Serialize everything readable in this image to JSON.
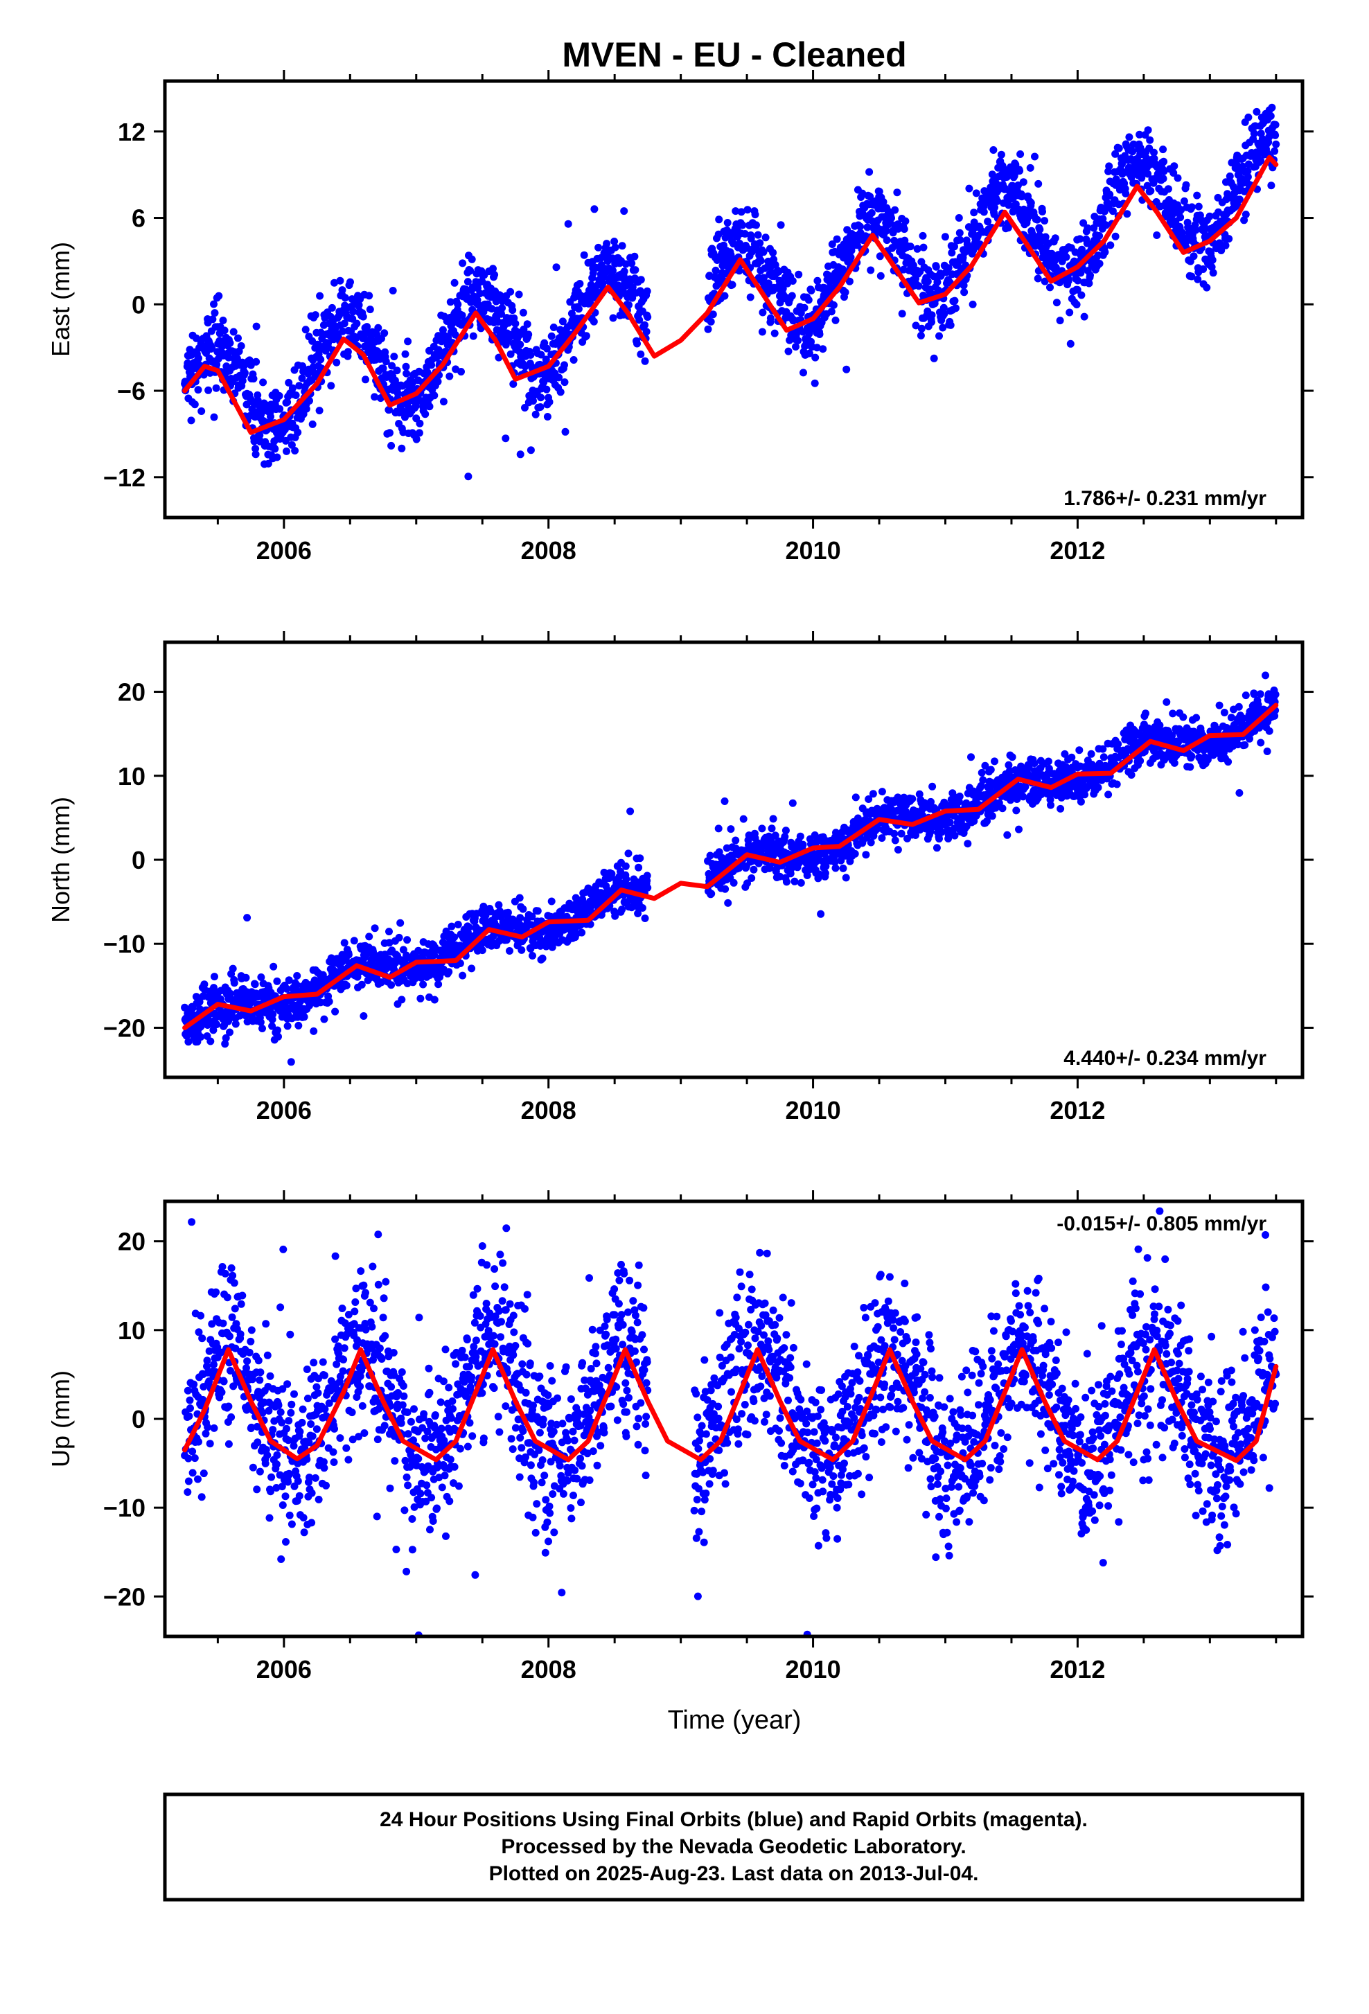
{
  "title": "MVEN  - EU - Cleaned",
  "x_axis_label": "Time (year)",
  "footer": {
    "line1": "24 Hour Positions Using Final Orbits (blue) and Rapid Orbits (magenta).",
    "line2": "Processed by the Nevada Geodetic Laboratory.",
    "line3": "Plotted on 2025-Aug-23. Last data on 2013-Jul-04."
  },
  "colors": {
    "points": "#0000ff",
    "model": "#ff0000",
    "axis": "#000000"
  },
  "chart_data": [
    {
      "type": "scatter",
      "name": "East",
      "ylabel": "East (mm)",
      "rate_label": "1.786+/- 0.231 mm/yr",
      "xlim": [
        2005.1,
        2013.7
      ],
      "ylim": [
        -14.8,
        15.5
      ],
      "x_ticks": [
        2006,
        2008,
        2010,
        2012
      ],
      "y_ticks": [
        -12,
        -6,
        0,
        6,
        12
      ],
      "grid": false,
      "trend": {
        "slope": 1.786,
        "intercept": -6.5,
        "amplitude": 3.2,
        "peak_phase": 0.45
      },
      "data_span": [
        2005.25,
        2013.5
      ],
      "data_gap": [
        2008.75,
        2009.2
      ],
      "scatter_sigma": 1.4,
      "model_curve": [
        [
          2005.25,
          -6.0
        ],
        [
          2005.4,
          -4.3
        ],
        [
          2005.5,
          -4.6
        ],
        [
          2005.75,
          -8.9
        ],
        [
          2006.0,
          -8.0
        ],
        [
          2006.25,
          -5.5
        ],
        [
          2006.45,
          -2.4
        ],
        [
          2006.6,
          -3.5
        ],
        [
          2006.8,
          -7.0
        ],
        [
          2007.0,
          -6.2
        ],
        [
          2007.2,
          -4.2
        ],
        [
          2007.45,
          -0.6
        ],
        [
          2007.6,
          -2.5
        ],
        [
          2007.75,
          -5.2
        ],
        [
          2008.0,
          -4.3
        ],
        [
          2008.2,
          -2.0
        ],
        [
          2008.45,
          1.2
        ],
        [
          2008.6,
          -0.6
        ],
        [
          2008.8,
          -3.6
        ],
        [
          2009.0,
          -2.5
        ],
        [
          2009.2,
          -0.6
        ],
        [
          2009.45,
          3.1
        ],
        [
          2009.6,
          1.0
        ],
        [
          2009.8,
          -1.8
        ],
        [
          2010.0,
          -1.0
        ],
        [
          2010.2,
          1.2
        ],
        [
          2010.45,
          4.8
        ],
        [
          2010.6,
          2.8
        ],
        [
          2010.8,
          0.1
        ],
        [
          2011.0,
          0.7
        ],
        [
          2011.2,
          2.7
        ],
        [
          2011.45,
          6.4
        ],
        [
          2011.6,
          4.4
        ],
        [
          2011.8,
          1.6
        ],
        [
          2012.0,
          2.6
        ],
        [
          2012.2,
          4.4
        ],
        [
          2012.45,
          8.2
        ],
        [
          2012.6,
          6.4
        ],
        [
          2012.8,
          3.6
        ],
        [
          2013.0,
          4.4
        ],
        [
          2013.2,
          6.0
        ],
        [
          2013.45,
          10.2
        ],
        [
          2013.5,
          9.7
        ]
      ]
    },
    {
      "type": "scatter",
      "name": "North",
      "ylabel": "North (mm)",
      "rate_label": "4.440+/- 0.234 mm/yr",
      "xlim": [
        2005.1,
        2013.7
      ],
      "ylim": [
        -25.9,
        25.9
      ],
      "x_ticks": [
        2006,
        2008,
        2010,
        2012
      ],
      "y_ticks": [
        -20,
        -10,
        0,
        10,
        20
      ],
      "grid": false,
      "trend": {
        "slope": 4.44,
        "intercept": -19.5,
        "amplitude": 1.2,
        "peak_phase": 0.55
      },
      "data_span": [
        2005.25,
        2013.5
      ],
      "data_gap": [
        2008.75,
        2009.2
      ],
      "scatter_sigma": 1.4,
      "model_curve": [
        [
          2005.25,
          -20.0
        ],
        [
          2005.5,
          -17.2
        ],
        [
          2005.75,
          -18.0
        ],
        [
          2006.0,
          -16.3
        ],
        [
          2006.25,
          -16.0
        ],
        [
          2006.55,
          -12.6
        ],
        [
          2006.8,
          -14.0
        ],
        [
          2007.0,
          -12.2
        ],
        [
          2007.3,
          -12.0
        ],
        [
          2007.55,
          -8.3
        ],
        [
          2007.8,
          -9.2
        ],
        [
          2008.0,
          -7.4
        ],
        [
          2008.3,
          -7.2
        ],
        [
          2008.55,
          -3.6
        ],
        [
          2008.8,
          -4.6
        ],
        [
          2009.0,
          -2.8
        ],
        [
          2009.2,
          -3.2
        ],
        [
          2009.5,
          0.6
        ],
        [
          2009.75,
          -0.3
        ],
        [
          2010.0,
          1.4
        ],
        [
          2010.2,
          1.6
        ],
        [
          2010.5,
          4.8
        ],
        [
          2010.75,
          4.2
        ],
        [
          2011.0,
          5.8
        ],
        [
          2011.25,
          6.0
        ],
        [
          2011.55,
          9.6
        ],
        [
          2011.8,
          8.6
        ],
        [
          2012.0,
          10.2
        ],
        [
          2012.25,
          10.3
        ],
        [
          2012.55,
          14.1
        ],
        [
          2012.8,
          13.0
        ],
        [
          2013.0,
          14.8
        ],
        [
          2013.25,
          14.9
        ],
        [
          2013.5,
          18.4
        ]
      ]
    },
    {
      "type": "scatter",
      "name": "Up",
      "ylabel": "Up (mm)",
      "rate_label": "-0.015+/- 0.805 mm/yr",
      "xlim": [
        2005.1,
        2013.7
      ],
      "ylim": [
        -24.5,
        24.5
      ],
      "x_ticks": [
        2006,
        2008,
        2010,
        2012
      ],
      "y_ticks": [
        -20,
        -10,
        0,
        10,
        20
      ],
      "grid": false,
      "trend": {
        "slope": -0.015,
        "intercept": 1.5,
        "amplitude": 6.2,
        "peak_phase": 0.58
      },
      "data_span": [
        2005.25,
        2013.5
      ],
      "data_gap": [
        2008.75,
        2009.1
      ],
      "scatter_sigma": 4.6,
      "model_curve": [
        [
          2005.25,
          -3.5
        ],
        [
          2005.4,
          1.0
        ],
        [
          2005.58,
          7.8
        ],
        [
          2005.75,
          2.0
        ],
        [
          2005.9,
          -2.5
        ],
        [
          2006.1,
          -4.5
        ],
        [
          2006.25,
          -3.0
        ],
        [
          2006.45,
          3.0
        ],
        [
          2006.58,
          7.8
        ],
        [
          2006.75,
          2.0
        ],
        [
          2006.9,
          -2.5
        ],
        [
          2007.15,
          -4.6
        ],
        [
          2007.3,
          -2.5
        ],
        [
          2007.58,
          7.8
        ],
        [
          2007.75,
          2.0
        ],
        [
          2007.9,
          -2.5
        ],
        [
          2008.15,
          -4.6
        ],
        [
          2008.3,
          -2.5
        ],
        [
          2008.58,
          7.8
        ],
        [
          2008.75,
          2.0
        ],
        [
          2008.9,
          -2.5
        ],
        [
          2009.15,
          -4.6
        ],
        [
          2009.3,
          -2.5
        ],
        [
          2009.58,
          7.8
        ],
        [
          2009.75,
          2.0
        ],
        [
          2009.9,
          -2.5
        ],
        [
          2010.15,
          -4.6
        ],
        [
          2010.3,
          -2.5
        ],
        [
          2010.58,
          7.8
        ],
        [
          2010.75,
          2.0
        ],
        [
          2010.9,
          -2.5
        ],
        [
          2011.15,
          -4.6
        ],
        [
          2011.3,
          -2.5
        ],
        [
          2011.58,
          7.8
        ],
        [
          2011.75,
          2.0
        ],
        [
          2011.9,
          -2.5
        ],
        [
          2012.15,
          -4.6
        ],
        [
          2012.3,
          -2.5
        ],
        [
          2012.58,
          7.8
        ],
        [
          2012.75,
          2.0
        ],
        [
          2012.9,
          -2.5
        ],
        [
          2013.2,
          -4.7
        ],
        [
          2013.35,
          -2.5
        ],
        [
          2013.5,
          5.9
        ]
      ]
    }
  ]
}
